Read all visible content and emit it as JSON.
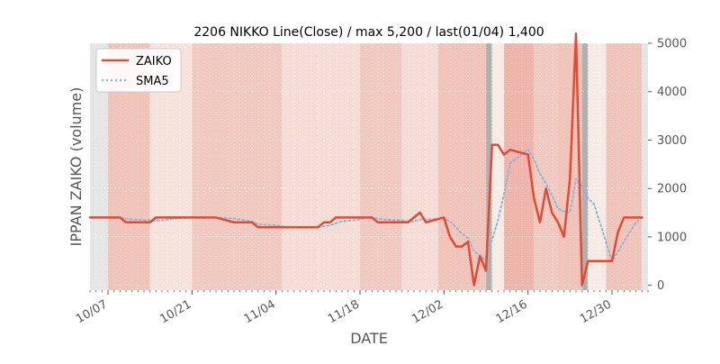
{
  "chart_data": {
    "type": "line",
    "title": "2206 NIKKO Line(Close) / max 5,200 / last(01/04) 1,400",
    "xlabel": "DATE",
    "ylabel": "IPPAN ZAIKO (volume)",
    "ylim": [
      -100,
      5000
    ],
    "y_axis_side": "right",
    "y_ticks": [
      0,
      1000,
      2000,
      3000,
      4000,
      5000
    ],
    "x_tick_labels": [
      "10/07",
      "10/21",
      "11/04",
      "11/18",
      "12/02",
      "12/16",
      "12/30"
    ],
    "x_start_date": "2019-10-04",
    "x_end_date": "2020-01-05",
    "legend": {
      "position": "upper-left",
      "entries": [
        "ZAIKO",
        "SMA5"
      ]
    },
    "colors": {
      "zaiko": "#e24a33",
      "sma5": "#8eb6d8",
      "grid": "#ffffff",
      "bg": "#e5e5e5"
    },
    "dates": [
      "2019-10-04",
      "2019-10-07",
      "2019-10-08",
      "2019-10-09",
      "2019-10-10",
      "2019-10-11",
      "2019-10-14",
      "2019-10-15",
      "2019-10-16",
      "2019-10-17",
      "2019-10-18",
      "2019-10-21",
      "2019-10-22",
      "2019-10-23",
      "2019-10-24",
      "2019-10-25",
      "2019-10-28",
      "2019-10-29",
      "2019-10-30",
      "2019-10-31",
      "2019-11-01",
      "2019-11-04",
      "2019-11-05",
      "2019-11-06",
      "2019-11-07",
      "2019-11-08",
      "2019-11-11",
      "2019-11-12",
      "2019-11-13",
      "2019-11-14",
      "2019-11-15",
      "2019-11-18",
      "2019-11-19",
      "2019-11-20",
      "2019-11-21",
      "2019-11-22",
      "2019-11-25",
      "2019-11-26",
      "2019-11-27",
      "2019-11-28",
      "2019-11-29",
      "2019-12-02",
      "2019-12-03",
      "2019-12-04",
      "2019-12-05",
      "2019-12-06",
      "2019-12-07",
      "2019-12-08",
      "2019-12-09",
      "2019-12-10",
      "2019-12-11",
      "2019-12-12",
      "2019-12-13",
      "2019-12-16",
      "2019-12-17",
      "2019-12-18",
      "2019-12-19",
      "2019-12-20",
      "2019-12-21",
      "2019-12-22",
      "2019-12-23",
      "2019-12-24",
      "2019-12-25",
      "2019-12-26",
      "2019-12-27",
      "2019-12-30",
      "2019-12-31",
      "2020-01-01",
      "2020-01-02",
      "2020-01-03",
      "2020-01-04"
    ],
    "series": [
      {
        "name": "ZAIKO",
        "style": "solid",
        "values": [
          1400,
          1400,
          1400,
          1400,
          1300,
          1300,
          1300,
          1400,
          1400,
          1400,
          1400,
          1400,
          1400,
          1400,
          1400,
          1400,
          1300,
          1300,
          1300,
          1300,
          1200,
          1200,
          1200,
          1200,
          1200,
          1200,
          1200,
          1300,
          1300,
          1400,
          1400,
          1400,
          1400,
          1400,
          1300,
          1300,
          1300,
          1300,
          1400,
          1500,
          1300,
          1400,
          1000,
          800,
          800,
          900,
          0,
          600,
          300,
          2900,
          2900,
          2700,
          2800,
          2700,
          1800,
          1300,
          2000,
          1500,
          1300,
          1000,
          2200,
          5200,
          0,
          500,
          500,
          500,
          1100,
          1400,
          1400,
          1400,
          1400
        ]
      },
      {
        "name": "SMA5",
        "style": "dotted",
        "values": [
          1400,
          1400,
          1400,
          1400,
          1380,
          1360,
          1340,
          1340,
          1340,
          1360,
          1380,
          1400,
          1400,
          1400,
          1400,
          1400,
          1380,
          1360,
          1340,
          1320,
          1260,
          1240,
          1220,
          1200,
          1200,
          1200,
          1200,
          1220,
          1240,
          1280,
          1320,
          1360,
          1400,
          1400,
          1380,
          1360,
          1340,
          1320,
          1320,
          1360,
          1360,
          1380,
          1320,
          1200,
          1060,
          980,
          700,
          620,
          520,
          940,
          1340,
          1880,
          2520,
          2800,
          2600,
          2300,
          2100,
          1860,
          1580,
          1520,
          1500,
          2200,
          2040,
          1800,
          1680,
          500,
          700,
          900,
          1100,
          1300,
          1400
        ]
      }
    ],
    "background_bands": [
      {
        "start": "2019-10-04",
        "end": "2019-10-07",
        "color": "#e5e5e5"
      },
      {
        "start": "2019-10-07",
        "end": "2019-10-14",
        "color": "#f2c3b9"
      },
      {
        "start": "2019-10-14",
        "end": "2019-10-21",
        "color": "#f5e2db"
      },
      {
        "start": "2019-10-21",
        "end": "2019-11-05",
        "color": "#f2c9c0"
      },
      {
        "start": "2019-11-05",
        "end": "2019-11-18",
        "color": "#f5ddd5"
      },
      {
        "start": "2019-11-18",
        "end": "2019-11-25",
        "color": "#f2c9c0"
      },
      {
        "start": "2019-11-25",
        "end": "2019-12-01",
        "color": "#f5ddd5"
      },
      {
        "start": "2019-12-01",
        "end": "2019-12-09",
        "color": "#f2c3b9"
      },
      {
        "start": "2019-12-09",
        "end": "2019-12-10",
        "color": "#b0b0b0"
      },
      {
        "start": "2019-12-10",
        "end": "2019-12-12",
        "color": "#f7ece5"
      },
      {
        "start": "2019-12-12",
        "end": "2019-12-17",
        "color": "#f2b4aa"
      },
      {
        "start": "2019-12-17",
        "end": "2019-12-21",
        "color": "#f2c9c0"
      },
      {
        "start": "2019-12-21",
        "end": "2019-12-25",
        "color": "#f2c3b9"
      },
      {
        "start": "2019-12-25",
        "end": "2019-12-26",
        "color": "#b0b0b0"
      },
      {
        "start": "2019-12-26",
        "end": "2019-12-29",
        "color": "#f7ece5"
      },
      {
        "start": "2019-12-29",
        "end": "2020-01-04",
        "color": "#f2c3b9"
      },
      {
        "start": "2020-01-04",
        "end": "2020-01-05",
        "color": "#e5e5e5"
      }
    ]
  }
}
